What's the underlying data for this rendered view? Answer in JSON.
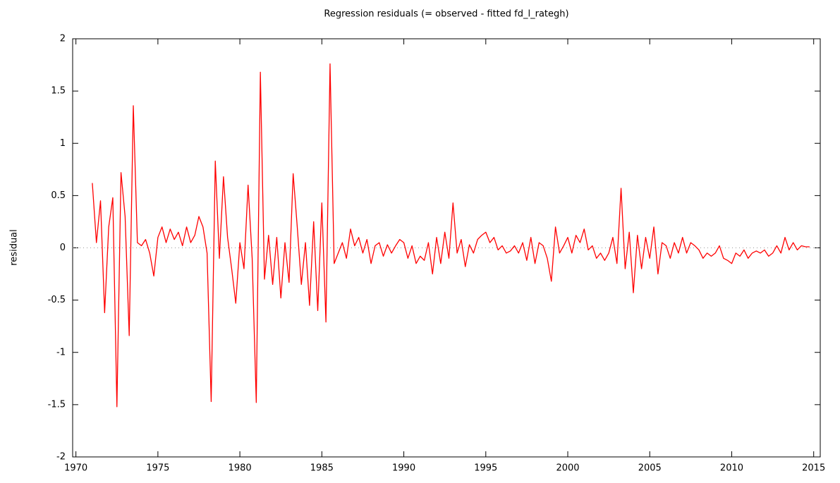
{
  "chart_data": {
    "type": "line",
    "title": "Regression residuals (= observed - fitted fd_l_rategh)",
    "y_label": "residual",
    "x": [
      1971,
      1971.25,
      1971.5,
      1971.75,
      1972,
      1972.25,
      1972.5,
      1972.75,
      1973,
      1973.25,
      1973.5,
      1973.75,
      1974,
      1974.25,
      1974.5,
      1974.75,
      1975,
      1975.25,
      1975.5,
      1975.75,
      1976,
      1976.25,
      1976.5,
      1976.75,
      1977,
      1977.25,
      1977.5,
      1977.75,
      1978,
      1978.25,
      1978.5,
      1978.75,
      1979,
      1979.25,
      1979.5,
      1979.75,
      1980,
      1980.25,
      1980.5,
      1980.75,
      1981,
      1981.25,
      1981.5,
      1981.75,
      1982,
      1982.25,
      1982.5,
      1982.75,
      1983,
      1983.25,
      1983.5,
      1983.75,
      1984,
      1984.25,
      1984.5,
      1984.75,
      1985,
      1985.25,
      1985.5,
      1985.75,
      1986,
      1986.25,
      1986.5,
      1986.75,
      1987,
      1987.25,
      1987.5,
      1987.75,
      1988,
      1988.25,
      1988.5,
      1988.75,
      1989,
      1989.25,
      1989.5,
      1989.75,
      1990,
      1990.25,
      1990.5,
      1990.75,
      1991,
      1991.25,
      1991.5,
      1991.75,
      1992,
      1992.25,
      1992.5,
      1992.75,
      1993,
      1993.25,
      1993.5,
      1993.75,
      1994,
      1994.25,
      1994.5,
      1994.75,
      1995,
      1995.25,
      1995.5,
      1995.75,
      1996,
      1996.25,
      1996.5,
      1996.75,
      1997,
      1997.25,
      1997.5,
      1997.75,
      1998,
      1998.25,
      1998.5,
      1998.75,
      1999,
      1999.25,
      1999.5,
      1999.75,
      2000,
      2000.25,
      2000.5,
      2000.75,
      2001,
      2001.25,
      2001.5,
      2001.75,
      2002,
      2002.25,
      2002.5,
      2002.75,
      2003,
      2003.25,
      2003.5,
      2003.75,
      2004,
      2004.25,
      2004.5,
      2004.75,
      2005,
      2005.25,
      2005.5,
      2005.75,
      2006,
      2006.25,
      2006.5,
      2006.75,
      2007,
      2007.25,
      2007.5,
      2007.75,
      2008,
      2008.25,
      2008.5,
      2008.75,
      2009,
      2009.25,
      2009.5,
      2009.75,
      2010,
      2010.25,
      2010.5,
      2010.75,
      2011,
      2011.25,
      2011.5,
      2011.75,
      2012,
      2012.25,
      2012.5,
      2012.75,
      2013,
      2013.25,
      2013.5,
      2013.75,
      2014,
      2014.25,
      2014.5,
      2014.75
    ],
    "series": [
      {
        "name": "residual",
        "color": "#ff0000",
        "values": [
          0.62,
          0.05,
          0.45,
          -0.62,
          0.2,
          0.48,
          -1.52,
          0.72,
          0.3,
          -0.84,
          1.36,
          0.05,
          0.02,
          0.08,
          -0.05,
          -0.27,
          0.1,
          0.2,
          0.05,
          0.18,
          0.08,
          0.15,
          0.02,
          0.2,
          0.05,
          0.12,
          0.3,
          0.2,
          -0.05,
          -1.47,
          0.83,
          -0.1,
          0.68,
          0.1,
          -0.2,
          -0.53,
          0.05,
          -0.2,
          0.6,
          -0.1,
          -1.48,
          1.68,
          -0.3,
          0.12,
          -0.35,
          0.1,
          -0.48,
          0.05,
          -0.33,
          0.71,
          0.2,
          -0.35,
          0.05,
          -0.55,
          0.25,
          -0.6,
          0.43,
          -0.71,
          1.76,
          -0.15,
          -0.05,
          0.05,
          -0.1,
          0.18,
          0.02,
          0.1,
          -0.05,
          0.08,
          -0.15,
          0.02,
          0.05,
          -0.08,
          0.03,
          -0.05,
          0.02,
          0.08,
          0.05,
          -0.1,
          0.02,
          -0.15,
          -0.08,
          -0.12,
          0.05,
          -0.25,
          0.1,
          -0.15,
          0.15,
          -0.1,
          0.43,
          -0.05,
          0.08,
          -0.18,
          0.03,
          -0.05,
          0.08,
          0.12,
          0.15,
          0.05,
          0.1,
          -0.02,
          0.02,
          -0.05,
          -0.03,
          0.02,
          -0.05,
          0.05,
          -0.12,
          0.1,
          -0.15,
          0.05,
          0.02,
          -0.1,
          -0.32,
          0.2,
          -0.05,
          0.02,
          0.1,
          -0.05,
          0.12,
          0.05,
          0.18,
          -0.02,
          0.02,
          -0.1,
          -0.05,
          -0.12,
          -0.05,
          0.1,
          -0.15,
          0.57,
          -0.2,
          0.15,
          -0.43,
          0.12,
          -0.2,
          0.1,
          -0.1,
          0.2,
          -0.25,
          0.05,
          0.02,
          -0.1,
          0.05,
          -0.05,
          0.1,
          -0.05,
          0.05,
          0.02,
          -0.02,
          -0.1,
          -0.05,
          -0.08,
          -0.05,
          0.02,
          -0.1,
          -0.12,
          -0.15,
          -0.05,
          -0.08,
          -0.02,
          -0.1,
          -0.05,
          -0.03,
          -0.05,
          -0.02,
          -0.08,
          -0.05,
          0.02,
          -0.05,
          0.1,
          -0.02,
          0.05,
          -0.02,
          0.02,
          0.01,
          0.01
        ]
      }
    ],
    "xlim": [
      1969.8,
      2015.4
    ],
    "xticks": [
      1970,
      1975,
      1980,
      1985,
      1990,
      1995,
      2000,
      2005,
      2010,
      2015
    ],
    "ylim": [
      -2,
      2
    ],
    "yticks": [
      -2,
      -1.5,
      -1,
      -0.5,
      0,
      0.5,
      1,
      1.5,
      2
    ],
    "zero_line": true
  }
}
